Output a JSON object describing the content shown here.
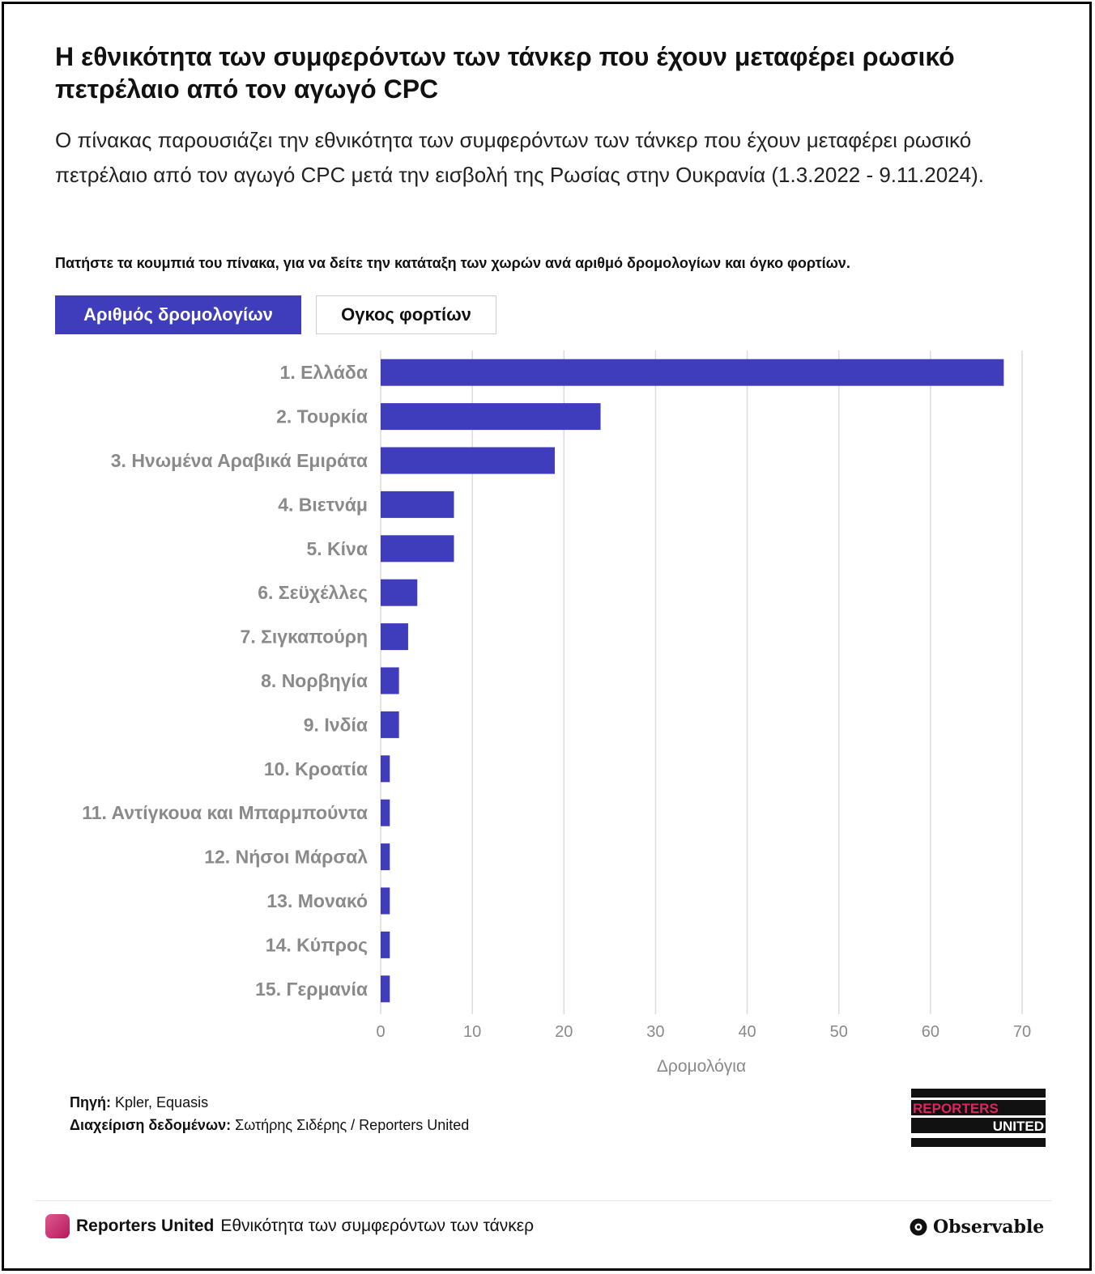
{
  "title": "Η εθνικότητα των συμφερόντων των τάνκερ που έχουν μεταφέρει ρωσικό πετρέλαιο από τον αγωγό CPC",
  "subtitle": "Ο πίνακας παρουσιάζει την εθνικότητα των συμφερόντων των τάνκερ που έχουν μεταφέρει ρωσικό πετρέλαιο από τον αγωγό CPC μετά την εισβολή της Ρωσίας στην Ουκρανία (1.3.2022 - 9.11.2024).",
  "instruction": "Πατήστε τα κουμπιά του πίνακα, για να δείτε την κατάταξη των χωρών ανά αριθμό δρομολογίων και όγκο φορτίων.",
  "buttons": {
    "active": "Αριθμός δρομολογίων",
    "inactive": "Ογκος φορτίων"
  },
  "chart_data": {
    "type": "bar",
    "orientation": "horizontal",
    "categories": [
      "1. Ελλάδα",
      "2. Τουρκία",
      "3. Ηνωμένα Αραβικά Εμιράτα",
      "4. Βιετνάμ",
      "5. Κίνα",
      "6. Σεϋχέλλες",
      "7. Σιγκαπούρη",
      "8. Νορβηγία",
      "9. Ινδία",
      "10. Κροατία",
      "11. Αντίγκουα και Μπαρμπούντα",
      "12. Νήσοι Μάρσαλ",
      "13. Μονακό",
      "14. Κύπρος",
      "15. Γερμανία"
    ],
    "values": [
      68,
      24,
      19,
      8,
      8,
      4,
      3,
      2,
      2,
      1,
      1,
      1,
      1,
      1,
      1
    ],
    "xlabel": "Δρομολόγια",
    "xlim": [
      0,
      70
    ],
    "xticks": [
      0,
      10,
      20,
      30,
      40,
      50,
      60,
      70
    ],
    "grid": "vertical",
    "bar_color": "#3f3dbb"
  },
  "footer": {
    "source_label": "Πηγή:",
    "source_value": "Kpler, Equasis",
    "data_label": "Διαχείριση δεδομένων:",
    "data_value": "Σωτήρης Σιδέρης / Reporters United"
  },
  "logo": {
    "line1": "REPORTERS",
    "line2": "UNITED"
  },
  "bottom_bar": {
    "org": "Reporters United",
    "notebook_title": "Εθνικότητα των συμφερόντων των τάνκερ",
    "platform": "Observable"
  }
}
